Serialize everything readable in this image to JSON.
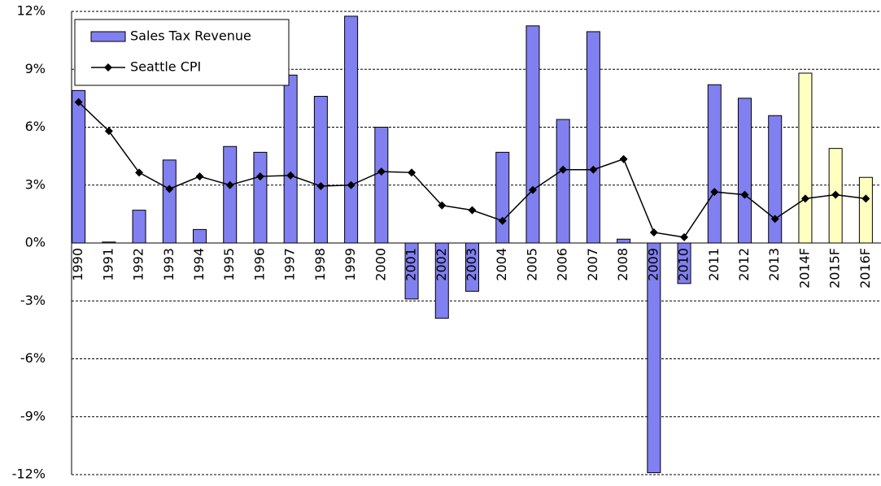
{
  "chart_data": {
    "type": "bar-line",
    "categories": [
      "1990",
      "1991",
      "1992",
      "1993",
      "1994",
      "1995",
      "1996",
      "1997",
      "1998",
      "1999",
      "2000",
      "2001",
      "2002",
      "2003",
      "2004",
      "2005",
      "2006",
      "2007",
      "2008",
      "2009",
      "2010",
      "2011",
      "2012",
      "2013",
      "2014F",
      "2015F",
      "2016F"
    ],
    "series": [
      {
        "name": "Sales Tax Revenue",
        "type": "bar",
        "color": "#8080f0",
        "colors": [
          "#8080f0",
          "#8080f0",
          "#8080f0",
          "#8080f0",
          "#8080f0",
          "#8080f0",
          "#8080f0",
          "#8080f0",
          "#8080f0",
          "#8080f0",
          "#8080f0",
          "#8080f0",
          "#8080f0",
          "#8080f0",
          "#8080f0",
          "#8080f0",
          "#8080f0",
          "#8080f0",
          "#8080f0",
          "#8080f0",
          "#8080f0",
          "#8080f0",
          "#8080f0",
          "#8080f0",
          "#ffffc0",
          "#ffffc0",
          "#ffffc0"
        ],
        "values": [
          7.9,
          0.05,
          1.7,
          4.3,
          0.7,
          5.0,
          4.7,
          8.7,
          7.6,
          11.75,
          6.0,
          -2.9,
          -3.9,
          -2.5,
          4.7,
          11.25,
          6.4,
          10.95,
          0.2,
          -11.9,
          -2.1,
          8.2,
          7.5,
          6.6,
          8.8,
          4.9,
          3.4
        ]
      },
      {
        "name": "Seattle CPI",
        "type": "line",
        "color": "#000000",
        "values": [
          7.3,
          5.8,
          3.65,
          2.8,
          3.45,
          3.0,
          3.45,
          3.5,
          2.95,
          3.0,
          3.7,
          3.65,
          1.95,
          1.7,
          1.15,
          2.75,
          3.8,
          3.8,
          4.35,
          0.55,
          0.3,
          2.65,
          2.5,
          1.25,
          2.3,
          2.5,
          2.3
        ]
      }
    ],
    "ylim": [
      -12,
      12
    ],
    "yticks": [
      {
        "value": -12,
        "label": "-12%"
      },
      {
        "value": -9,
        "label": "-9%"
      },
      {
        "value": -6,
        "label": "-6%"
      },
      {
        "value": -3,
        "label": "-3%"
      },
      {
        "value": 0,
        "label": "0%"
      },
      {
        "value": 3,
        "label": "3%"
      },
      {
        "value": 6,
        "label": "6%"
      },
      {
        "value": 9,
        "label": "9%"
      },
      {
        "value": 12,
        "label": "12%"
      }
    ],
    "grid": true,
    "legend": "top-left"
  }
}
